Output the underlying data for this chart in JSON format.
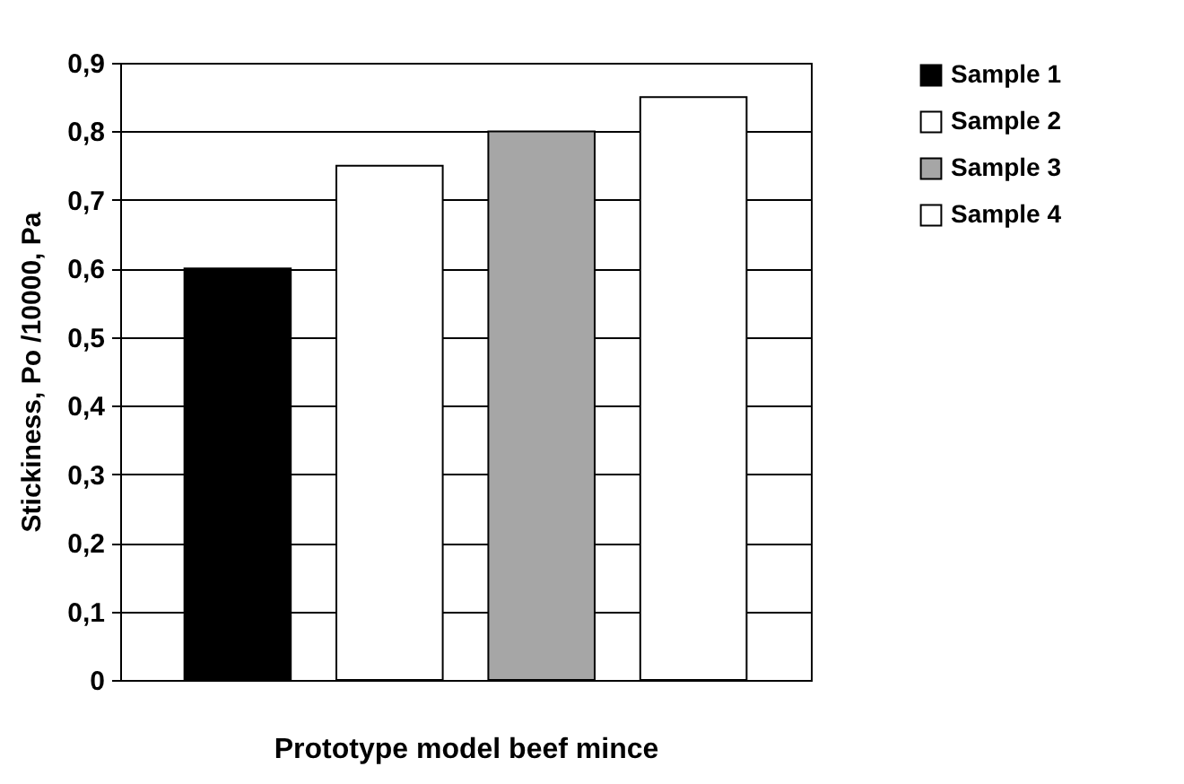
{
  "chart_data": {
    "type": "bar",
    "xlabel": "Prototype model beef mince",
    "ylabel": "Stickiness, Po /10000, Pa",
    "categories": [
      null
    ],
    "series": [
      {
        "name": "Sample 1",
        "color": "#000000",
        "values": [
          0.6
        ]
      },
      {
        "name": "Sample 2",
        "color": "#ffffff",
        "values": [
          0.75
        ]
      },
      {
        "name": "Sample 3",
        "color": "#a6a6a6",
        "values": [
          0.8
        ]
      },
      {
        "name": "Sample 4",
        "color": "#ffffff",
        "values": [
          0.85
        ]
      }
    ],
    "ylim": [
      0,
      0.9
    ],
    "yticks": [
      0,
      {
        "value": 0.1,
        "label": "0,1"
      },
      {
        "value": 0.2,
        "label": "0,2"
      },
      {
        "value": 0.3,
        "label": "0,3"
      },
      {
        "value": 0.4,
        "label": "0,4"
      },
      {
        "value": 0.5,
        "label": "0,5"
      },
      {
        "value": 0.6,
        "label": "0,6"
      },
      {
        "value": 0.7,
        "label": "0,7"
      },
      {
        "value": 0.8,
        "label": "0,8"
      },
      {
        "value": 0.9,
        "label": "0,9"
      }
    ],
    "grid": "y",
    "legend": "right",
    "tick_labels": "y"
  }
}
